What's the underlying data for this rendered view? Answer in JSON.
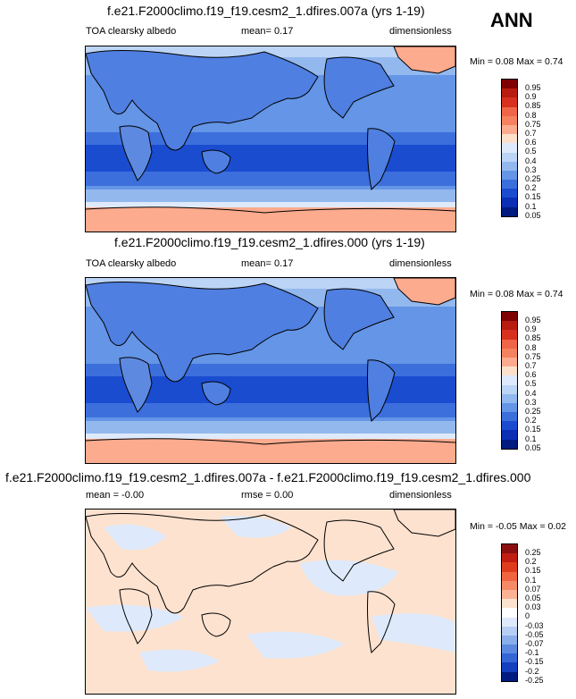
{
  "season": "ANN",
  "panels": [
    {
      "title": "f.e21.F2000climo.f19_f19.cesm2_1.dfires.007a (yrs 1-19)",
      "left": "TOA clearsky albedo",
      "mid": "mean=  0.17",
      "right": "dimensionless",
      "minmax": "Min = 0.08 Max = 0.74",
      "levels": [
        "0.95",
        "0.9",
        "0.85",
        "0.8",
        "0.75",
        "0.7",
        "0.6",
        "0.5",
        "0.4",
        "0.3",
        "0.25",
        "0.2",
        "0.15",
        "0.1",
        "0.05"
      ]
    },
    {
      "title": "f.e21.F2000climo.f19_f19.cesm2_1.dfires.000 (yrs 1-19)",
      "left": "TOA clearsky albedo",
      "mid": "mean=  0.17",
      "right": "dimensionless",
      "minmax": "Min = 0.08 Max = 0.74",
      "levels": [
        "0.95",
        "0.9",
        "0.85",
        "0.8",
        "0.75",
        "0.7",
        "0.6",
        "0.5",
        "0.4",
        "0.3",
        "0.25",
        "0.2",
        "0.15",
        "0.1",
        "0.05"
      ]
    },
    {
      "title": "f.e21.F2000climo.f19_f19.cesm2_1.dfires.007a - f.e21.F2000climo.f19_f19.cesm2_1.dfires.000",
      "left": "mean =  -0.00",
      "mid": "rmse =  0.00",
      "right": "dimensionless",
      "minmax": "Min = -0.05 Max = 0.02",
      "levels": [
        "0.25",
        "0.2",
        "0.15",
        "0.1",
        "0.07",
        "0.05",
        "0.03",
        "0",
        "-0.03",
        "-0.05",
        "-0.07",
        "-0.1",
        "-0.15",
        "-0.2",
        "-0.25"
      ]
    }
  ],
  "colors": {
    "seq": [
      "#7f0000",
      "#b81c10",
      "#d7301f",
      "#ef6548",
      "#f5825e",
      "#fcab8e",
      "#fde0cc",
      "#deeafb",
      "#bcd4f5",
      "#93b8ee",
      "#6495e6",
      "#3c6fdc",
      "#1a4cd0",
      "#0a2fb4",
      "#001a80"
    ],
    "diff": [
      "#8c0f0f",
      "#c01e12",
      "#df3c1e",
      "#f06442",
      "#f58a66",
      "#fab394",
      "#fde2cf",
      "#ffffff",
      "#deeafb",
      "#b7cef3",
      "#8aaeea",
      "#5d8ae0",
      "#3566d6",
      "#143fbe",
      "#001a80"
    ]
  }
}
